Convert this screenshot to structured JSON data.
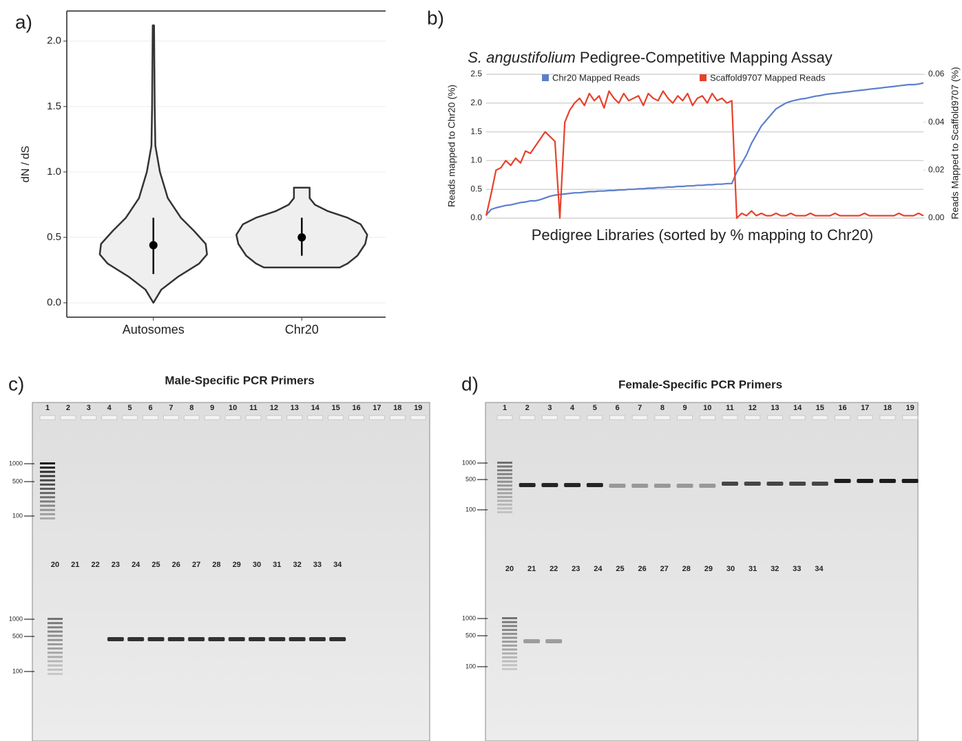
{
  "chart_data": [
    {
      "type": "violin",
      "label": "a)",
      "ylabel": "dN / dS",
      "categories": [
        "Autosomes",
        "Chr20"
      ],
      "ylim": [
        -0.11,
        2.23
      ],
      "yticks": [
        {
          "value": 0,
          "label": "0.0"
        },
        0.5,
        {
          "value": 1,
          "label": "1.0"
        },
        1.5,
        {
          "value": 2,
          "label": "2.0"
        }
      ],
      "grid": true,
      "color": "#efefef",
      "violins": [
        {
          "profile_y": [
            0,
            0.1,
            0.2,
            0.3,
            0.37,
            0.45,
            0.55,
            0.65,
            0.8,
            1.0,
            1.2,
            1.5,
            2.12
          ],
          "profile_width": [
            0,
            0.12,
            0.38,
            0.7,
            0.82,
            0.8,
            0.62,
            0.42,
            0.22,
            0.1,
            0.03,
            0.02,
            0.01
          ],
          "median": 0.44,
          "whisker": [
            0.22,
            0.65
          ]
        },
        {
          "profile_y": [
            0.27,
            0.3,
            0.36,
            0.45,
            0.52,
            0.6,
            0.65,
            0.7,
            0.75,
            0.8,
            0.88
          ],
          "profile_width": [
            0.58,
            0.7,
            0.85,
            0.97,
            1.0,
            0.9,
            0.7,
            0.4,
            0.2,
            0.12,
            0.12
          ],
          "median": 0.5,
          "whisker": [
            0.36,
            0.65
          ]
        }
      ]
    },
    {
      "type": "line",
      "label": "b)",
      "title_parts": [
        "S. angustifolium",
        " Pedigree-Competitive Mapping Assay"
      ],
      "xlabel": "Pedigree Libraries (sorted by % mapping to Chr20)",
      "ylabel": "Reads mapped to Chr20 (%)",
      "y2label": "Reads Mapped to Scaffold9707 (%)",
      "ylim": [
        0,
        2.5
      ],
      "yticks": [
        {
          "value": 0,
          "label": "0.0"
        },
        0.5,
        {
          "value": 1,
          "label": "1.0"
        },
        1.5,
        {
          "value": 2,
          "label": "2.0"
        },
        2.5
      ],
      "y2lim": [
        0,
        0.06
      ],
      "y2ticks": [
        {
          "value": 0,
          "label": "0.00"
        },
        0.02,
        0.04,
        0.06
      ],
      "grid": true,
      "legend": "top",
      "series": [
        {
          "name": "Chr20 Mapped Reads",
          "color": "#5b7fcc",
          "values": [
            0.05,
            0.15,
            0.18,
            0.2,
            0.22,
            0.23,
            0.25,
            0.27,
            0.28,
            0.3,
            0.3,
            0.32,
            0.35,
            0.38,
            0.4,
            0.41,
            0.42,
            0.43,
            0.44,
            0.44,
            0.45,
            0.46,
            0.46,
            0.47,
            0.47,
            0.48,
            0.48,
            0.49,
            0.49,
            0.5,
            0.5,
            0.51,
            0.51,
            0.52,
            0.52,
            0.53,
            0.53,
            0.54,
            0.54,
            0.55,
            0.55,
            0.56,
            0.56,
            0.57,
            0.57,
            0.58,
            0.58,
            0.59,
            0.59,
            0.6,
            0.6,
            0.8,
            0.95,
            1.1,
            1.3,
            1.45,
            1.6,
            1.7,
            1.8,
            1.9,
            1.95,
            2.0,
            2.03,
            2.05,
            2.07,
            2.08,
            2.1,
            2.12,
            2.13,
            2.15,
            2.16,
            2.17,
            2.18,
            2.19,
            2.2,
            2.21,
            2.22,
            2.23,
            2.24,
            2.25,
            2.26,
            2.27,
            2.28,
            2.29,
            2.3,
            2.31,
            2.32,
            2.32,
            2.33,
            2.35
          ]
        },
        {
          "name": "Scaffold9707 Mapped Reads",
          "color": "#e8402a",
          "axis": "y2",
          "values": [
            0.001,
            0.01,
            0.02,
            0.021,
            0.024,
            0.022,
            0.025,
            0.023,
            0.028,
            0.027,
            0.03,
            0.033,
            0.036,
            0.034,
            0.032,
            0.0,
            0.04,
            0.045,
            0.048,
            0.05,
            0.047,
            0.052,
            0.049,
            0.051,
            0.046,
            0.053,
            0.05,
            0.048,
            0.052,
            0.049,
            0.05,
            0.051,
            0.047,
            0.052,
            0.05,
            0.049,
            0.053,
            0.05,
            0.048,
            0.051,
            0.049,
            0.052,
            0.047,
            0.05,
            0.051,
            0.048,
            0.052,
            0.049,
            0.05,
            0.048,
            0.049,
            0.0,
            0.002,
            0.001,
            0.003,
            0.001,
            0.002,
            0.001,
            0.001,
            0.002,
            0.001,
            0.001,
            0.002,
            0.001,
            0.001,
            0.001,
            0.002,
            0.001,
            0.001,
            0.001,
            0.001,
            0.002,
            0.001,
            0.001,
            0.001,
            0.001,
            0.001,
            0.002,
            0.001,
            0.001,
            0.001,
            0.001,
            0.001,
            0.001,
            0.002,
            0.001,
            0.001,
            0.001,
            0.002,
            0.001
          ]
        }
      ]
    }
  ],
  "gels": [
    {
      "label": "c)",
      "title": "Male-Specific PCR Primers",
      "lanes_top": [
        "1",
        "2",
        "3",
        "4",
        "5",
        "6",
        "7",
        "8",
        "9",
        "10",
        "11",
        "12",
        "13",
        "14",
        "15",
        "16",
        "17",
        "18",
        "19"
      ],
      "lanes_bottom": [
        "20",
        "21",
        "22",
        "23",
        "24",
        "25",
        "26",
        "27",
        "28",
        "29",
        "30",
        "31",
        "32",
        "33",
        "34"
      ],
      "ladder_top": [
        "1000",
        "500",
        "100"
      ],
      "ladder_bottom": [
        "1000",
        "500",
        "100"
      ]
    },
    {
      "label": "d)",
      "title": "Female-Specific PCR Primers",
      "lanes_top": [
        "1",
        "2",
        "3",
        "4",
        "5",
        "6",
        "7",
        "8",
        "9",
        "10",
        "11",
        "12",
        "13",
        "14",
        "15",
        "16",
        "17",
        "18",
        "19"
      ],
      "lanes_bottom": [
        "20",
        "21",
        "22",
        "23",
        "24",
        "25",
        "26",
        "27",
        "28",
        "29",
        "30",
        "31",
        "32",
        "33",
        "34"
      ],
      "ladder_top": [
        "1000",
        "500",
        "100"
      ],
      "ladder_bottom": [
        "1000",
        "500",
        "100"
      ]
    }
  ]
}
